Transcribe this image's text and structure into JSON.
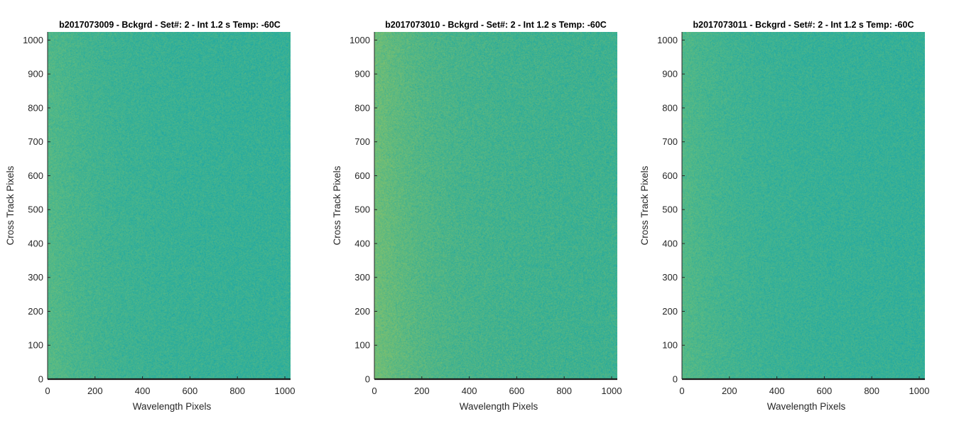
{
  "chart_data": [
    {
      "type": "heatmap",
      "title": "b2017073009 - Bckgrd - Set#: 2 - Int 1.2 s Temp: -60C",
      "xlabel": "Wavelength Pixels",
      "ylabel": "Cross Track Pixels",
      "xlim": [
        0,
        1024
      ],
      "ylim": [
        0,
        1024
      ],
      "xticks": [
        0,
        200,
        400,
        600,
        800,
        1000
      ],
      "yticks": [
        0,
        100,
        200,
        300,
        400,
        500,
        600,
        700,
        800,
        900,
        1000
      ],
      "colormap": "parula",
      "base_color": "#22aaa1",
      "accent_color": "#6cbf7a",
      "left_edge_brightness": "higher"
    },
    {
      "type": "heatmap",
      "title": "b2017073010 - Bckgrd - Set#: 2 - Int 1.2 s Temp: -60C",
      "xlabel": "Wavelength Pixels",
      "ylabel": "Cross Track Pixels",
      "xlim": [
        0,
        1024
      ],
      "ylim": [
        0,
        1024
      ],
      "xticks": [
        0,
        200,
        400,
        600,
        800,
        1000
      ],
      "yticks": [
        0,
        100,
        200,
        300,
        400,
        500,
        600,
        700,
        800,
        900,
        1000
      ],
      "colormap": "parula",
      "base_color": "#27ab9c",
      "accent_color": "#7cc070",
      "left_edge_brightness": "highest"
    },
    {
      "type": "heatmap",
      "title": "b2017073011 - Bckgrd - Set#: 2 - Int 1.2 s Temp: -60C",
      "xlabel": "Wavelength Pixels",
      "ylabel": "Cross Track Pixels",
      "xlim": [
        0,
        1024
      ],
      "ylim": [
        0,
        1024
      ],
      "xticks": [
        0,
        200,
        400,
        600,
        800,
        1000
      ],
      "yticks": [
        0,
        100,
        200,
        300,
        400,
        500,
        600,
        700,
        800,
        900,
        1000
      ],
      "colormap": "parula",
      "base_color": "#22aaa2",
      "accent_color": "#6abf7b",
      "left_edge_brightness": "higher"
    }
  ]
}
